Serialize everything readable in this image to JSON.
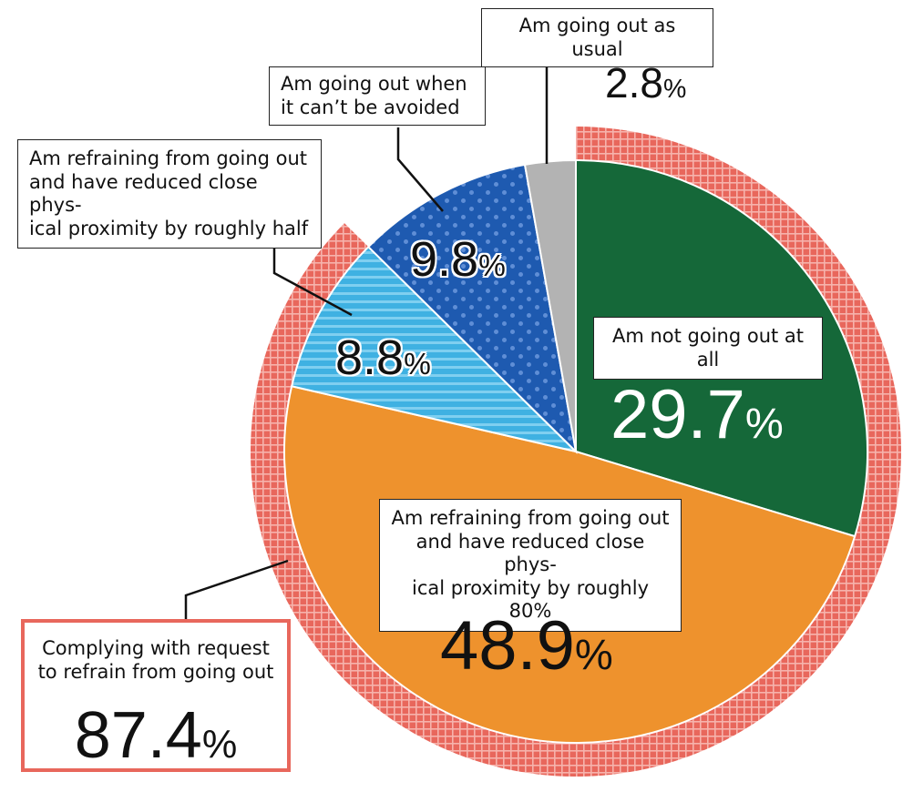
{
  "chart_data": {
    "type": "pie",
    "slices": [
      {
        "label": "Am not going out at all",
        "value": 29.7,
        "display": "29.7",
        "color": "#156839"
      },
      {
        "label": "Am refraining from going out\nand have reduced close phys-\nical proximity by roughly 80%",
        "value": 48.9,
        "display": "48.9",
        "color": "#ee922d"
      },
      {
        "label": "Am refraining from going out\nand have reduced close phys-\nical proximity by roughly half",
        "value": 8.8,
        "display": "8.8",
        "color": "#3fb1e2",
        "pattern": "stripes"
      },
      {
        "label": "Am going out when\nit can’t be avoided",
        "value": 9.8,
        "display": "9.8",
        "color": "#1e5ab0",
        "pattern": "dots"
      },
      {
        "label": "Am going out as usual",
        "value": 2.8,
        "display": "2.8",
        "color": "#b3b3b3"
      }
    ],
    "unit": "%",
    "group": {
      "label": "Complying with request\nto refrain from going out",
      "value": 87.4,
      "display": "87.4",
      "color": "#e8675c"
    }
  }
}
